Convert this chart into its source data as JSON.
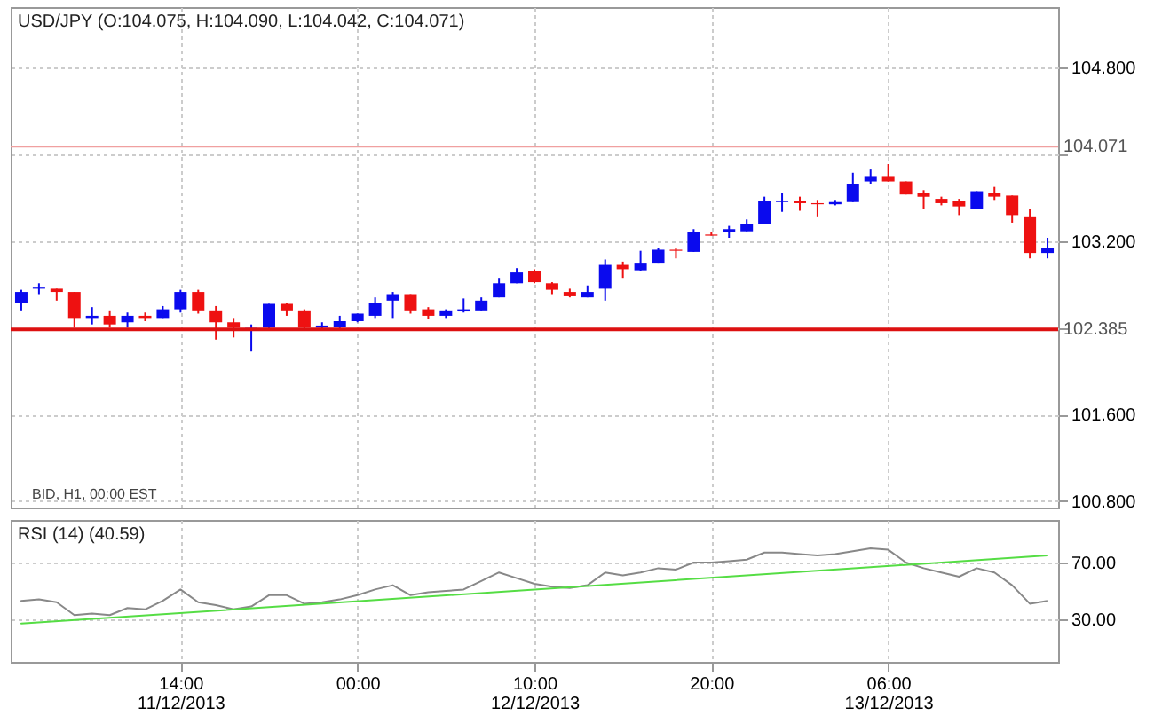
{
  "chart_data": [
    {
      "type": "candlestick",
      "title": "USD/JPY (O:104.075, H:104.090, L:104.042, C:104.071)",
      "categories": [
        null,
        null,
        null,
        null,
        null,
        null,
        null,
        null,
        null,
        null,
        null,
        null,
        null,
        null,
        null,
        null,
        null,
        null,
        null,
        null,
        null,
        null,
        null,
        null,
        null,
        null,
        null,
        null,
        null,
        null,
        null,
        null,
        null,
        null,
        null,
        null,
        null,
        null,
        null,
        null,
        null,
        null,
        null,
        null,
        null,
        null,
        null,
        null,
        null,
        null,
        null,
        null,
        null,
        null,
        null,
        null,
        null,
        null,
        null
      ],
      "ohlc": [
        [
          102.63,
          102.75,
          102.56,
          102.73
        ],
        [
          102.76,
          102.81,
          102.71,
          102.77
        ],
        [
          102.76,
          102.76,
          102.65,
          102.73
        ],
        [
          102.73,
          102.73,
          102.4,
          102.49
        ],
        [
          102.49,
          102.59,
          102.43,
          102.51
        ],
        [
          102.51,
          102.56,
          102.4,
          102.43
        ],
        [
          102.45,
          102.54,
          102.4,
          102.51
        ],
        [
          102.51,
          102.54,
          102.46,
          102.49
        ],
        [
          102.49,
          102.6,
          102.49,
          102.57
        ],
        [
          102.57,
          102.75,
          102.54,
          102.73
        ],
        [
          102.73,
          102.75,
          102.53,
          102.56
        ],
        [
          102.56,
          102.6,
          102.29,
          102.45
        ],
        [
          102.45,
          102.49,
          102.31,
          102.4
        ],
        [
          102.4,
          102.43,
          102.18,
          102.41
        ],
        [
          102.4,
          102.62,
          102.38,
          102.62
        ],
        [
          102.62,
          102.63,
          102.51,
          102.56
        ],
        [
          102.56,
          102.57,
          102.38,
          102.4
        ],
        [
          102.4,
          102.45,
          102.37,
          102.42
        ],
        [
          102.41,
          102.51,
          102.38,
          102.46
        ],
        [
          102.46,
          102.53,
          102.45,
          102.53
        ],
        [
          102.51,
          102.68,
          102.49,
          102.63
        ],
        [
          102.65,
          102.73,
          102.49,
          102.71
        ],
        [
          102.71,
          102.71,
          102.53,
          102.56
        ],
        [
          102.57,
          102.59,
          102.48,
          102.51
        ],
        [
          102.51,
          102.57,
          102.49,
          102.56
        ],
        [
          102.55,
          102.67,
          102.54,
          102.57
        ],
        [
          102.56,
          102.68,
          102.56,
          102.65
        ],
        [
          102.68,
          102.86,
          102.68,
          102.81
        ],
        [
          102.81,
          102.95,
          102.81,
          102.91
        ],
        [
          102.92,
          102.94,
          102.81,
          102.82
        ],
        [
          102.81,
          102.82,
          102.71,
          102.75
        ],
        [
          102.73,
          102.76,
          102.68,
          102.69
        ],
        [
          102.68,
          102.79,
          102.68,
          102.73
        ],
        [
          102.76,
          103.03,
          102.65,
          102.98
        ],
        [
          102.98,
          103.01,
          102.86,
          102.94
        ],
        [
          102.93,
          103.11,
          102.92,
          103.0
        ],
        [
          103.0,
          103.14,
          103.0,
          103.12
        ],
        [
          103.12,
          103.14,
          103.04,
          103.11
        ],
        [
          103.1,
          103.31,
          103.1,
          103.28
        ],
        [
          103.26,
          103.28,
          103.25,
          103.25
        ],
        [
          103.28,
          103.34,
          103.23,
          103.31
        ],
        [
          103.29,
          103.4,
          103.29,
          103.36
        ],
        [
          103.36,
          103.61,
          103.36,
          103.57
        ],
        [
          103.56,
          103.64,
          103.47,
          103.57
        ],
        [
          103.57,
          103.61,
          103.48,
          103.55
        ],
        [
          103.55,
          103.58,
          103.42,
          103.54
        ],
        [
          103.54,
          103.58,
          103.53,
          103.56
        ],
        [
          103.56,
          103.83,
          103.56,
          103.73
        ],
        [
          103.75,
          103.86,
          103.73,
          103.8
        ],
        [
          103.8,
          103.91,
          103.75,
          103.75
        ],
        [
          103.75,
          103.75,
          103.63,
          103.63
        ],
        [
          103.64,
          103.67,
          103.5,
          103.61
        ],
        [
          103.59,
          103.61,
          103.53,
          103.55
        ],
        [
          103.57,
          103.59,
          103.44,
          103.52
        ],
        [
          103.5,
          103.66,
          103.5,
          103.66
        ],
        [
          103.64,
          103.7,
          103.58,
          103.61
        ],
        [
          103.62,
          103.62,
          103.37,
          103.44
        ],
        [
          103.42,
          103.5,
          103.04,
          103.09
        ],
        [
          103.09,
          103.23,
          103.04,
          103.14
        ]
      ],
      "colors": [
        "#0a0aee",
        "#0a0aee",
        "#ee1111",
        "#ee1111",
        "#0a0aee",
        "#ee1111",
        "#0a0aee",
        "#ee1111",
        "#0a0aee",
        "#0a0aee",
        "#ee1111",
        "#ee1111",
        "#ee1111",
        "#0a0aee",
        "#0a0aee",
        "#ee1111",
        "#ee1111",
        "#0a0aee",
        "#0a0aee",
        "#0a0aee",
        "#0a0aee",
        "#0a0aee",
        "#ee1111",
        "#ee1111",
        "#0a0aee",
        "#0a0aee",
        "#0a0aee",
        "#0a0aee",
        "#0a0aee",
        "#ee1111",
        "#ee1111",
        "#ee1111",
        "#0a0aee",
        "#0a0aee",
        "#ee1111",
        "#0a0aee",
        "#0a0aee",
        "#ee1111",
        "#0a0aee",
        "#ee1111",
        "#0a0aee",
        "#0a0aee",
        "#0a0aee",
        "#0a0aee",
        "#ee1111",
        "#ee1111",
        "#0a0aee",
        "#0a0aee",
        "#0a0aee",
        "#ee1111",
        "#ee1111",
        "#ee1111",
        "#ee1111",
        "#ee1111",
        "#0a0aee",
        "#ee1111",
        "#ee1111",
        "#ee1111",
        "#0a0aee"
      ],
      "ylim": [
        100.74,
        105.36
      ],
      "yticks": [
        {
          "value": 100.8,
          "label": "100.800"
        },
        {
          "value": 101.6,
          "label": "101.600"
        },
        {
          "value": 102.4,
          "label": null
        },
        {
          "value": 103.2,
          "label": "103.200"
        },
        {
          "value": 104.0,
          "label": null
        },
        {
          "value": 104.8,
          "label": "104.800"
        }
      ],
      "ref_lines": [
        {
          "axis": "y",
          "value": 104.071,
          "label": "104.071",
          "color": "#f0a0a0"
        },
        {
          "axis": "y",
          "value": 102.385,
          "label": "102.385",
          "color": "#dd1111"
        }
      ],
      "annotations": [
        "BID, H1, 00:00 EST"
      ],
      "grid": true,
      "tick_labels": "y"
    },
    {
      "type": "line",
      "title": "RSI (14)  (40.59)",
      "categories": [
        null,
        null,
        null,
        null,
        null,
        null,
        null,
        null,
        null,
        "14:00\n11/12/2013",
        null,
        null,
        null,
        null,
        null,
        null,
        null,
        null,
        null,
        "00:00",
        null,
        null,
        null,
        null,
        null,
        null,
        null,
        null,
        null,
        "10:00\n12/12/2013",
        null,
        null,
        null,
        null,
        null,
        null,
        null,
        null,
        null,
        "20:00",
        null,
        null,
        null,
        null,
        null,
        null,
        null,
        null,
        null,
        "06:00\n13/12/2013",
        null,
        null,
        null,
        null,
        null,
        null,
        null,
        null,
        null
      ],
      "series": [
        {
          "color": "#888888",
          "values": [
            43,
            44,
            42,
            33,
            34,
            33,
            38,
            37,
            43,
            51,
            42,
            40,
            37,
            39,
            47,
            47,
            41,
            42,
            44,
            47,
            51,
            54,
            47,
            49,
            50,
            51,
            57,
            63,
            59,
            55,
            53,
            52,
            54,
            63,
            61,
            63,
            66,
            65,
            70,
            70,
            71,
            72,
            77,
            77,
            76,
            75,
            76,
            78,
            80,
            79,
            70,
            66,
            63,
            60,
            66,
            63,
            54,
            41,
            43
          ]
        },
        {
          "type": "line",
          "color": "#55dd44",
          "values": [
            27,
            null,
            null,
            null,
            null,
            null,
            null,
            null,
            null,
            null,
            null,
            null,
            null,
            null,
            null,
            null,
            null,
            null,
            null,
            null,
            null,
            null,
            null,
            null,
            null,
            null,
            null,
            null,
            null,
            null,
            null,
            null,
            null,
            null,
            null,
            null,
            null,
            null,
            null,
            null,
            null,
            null,
            null,
            null,
            null,
            null,
            null,
            null,
            null,
            null,
            null,
            null,
            null,
            null,
            null,
            null,
            null,
            null,
            75
          ]
        }
      ],
      "ylim": [
        0,
        100
      ],
      "yticks": [
        {
          "value": 30,
          "label": "30.00"
        },
        {
          "value": 70,
          "label": "70.00"
        }
      ],
      "grid": true
    }
  ]
}
